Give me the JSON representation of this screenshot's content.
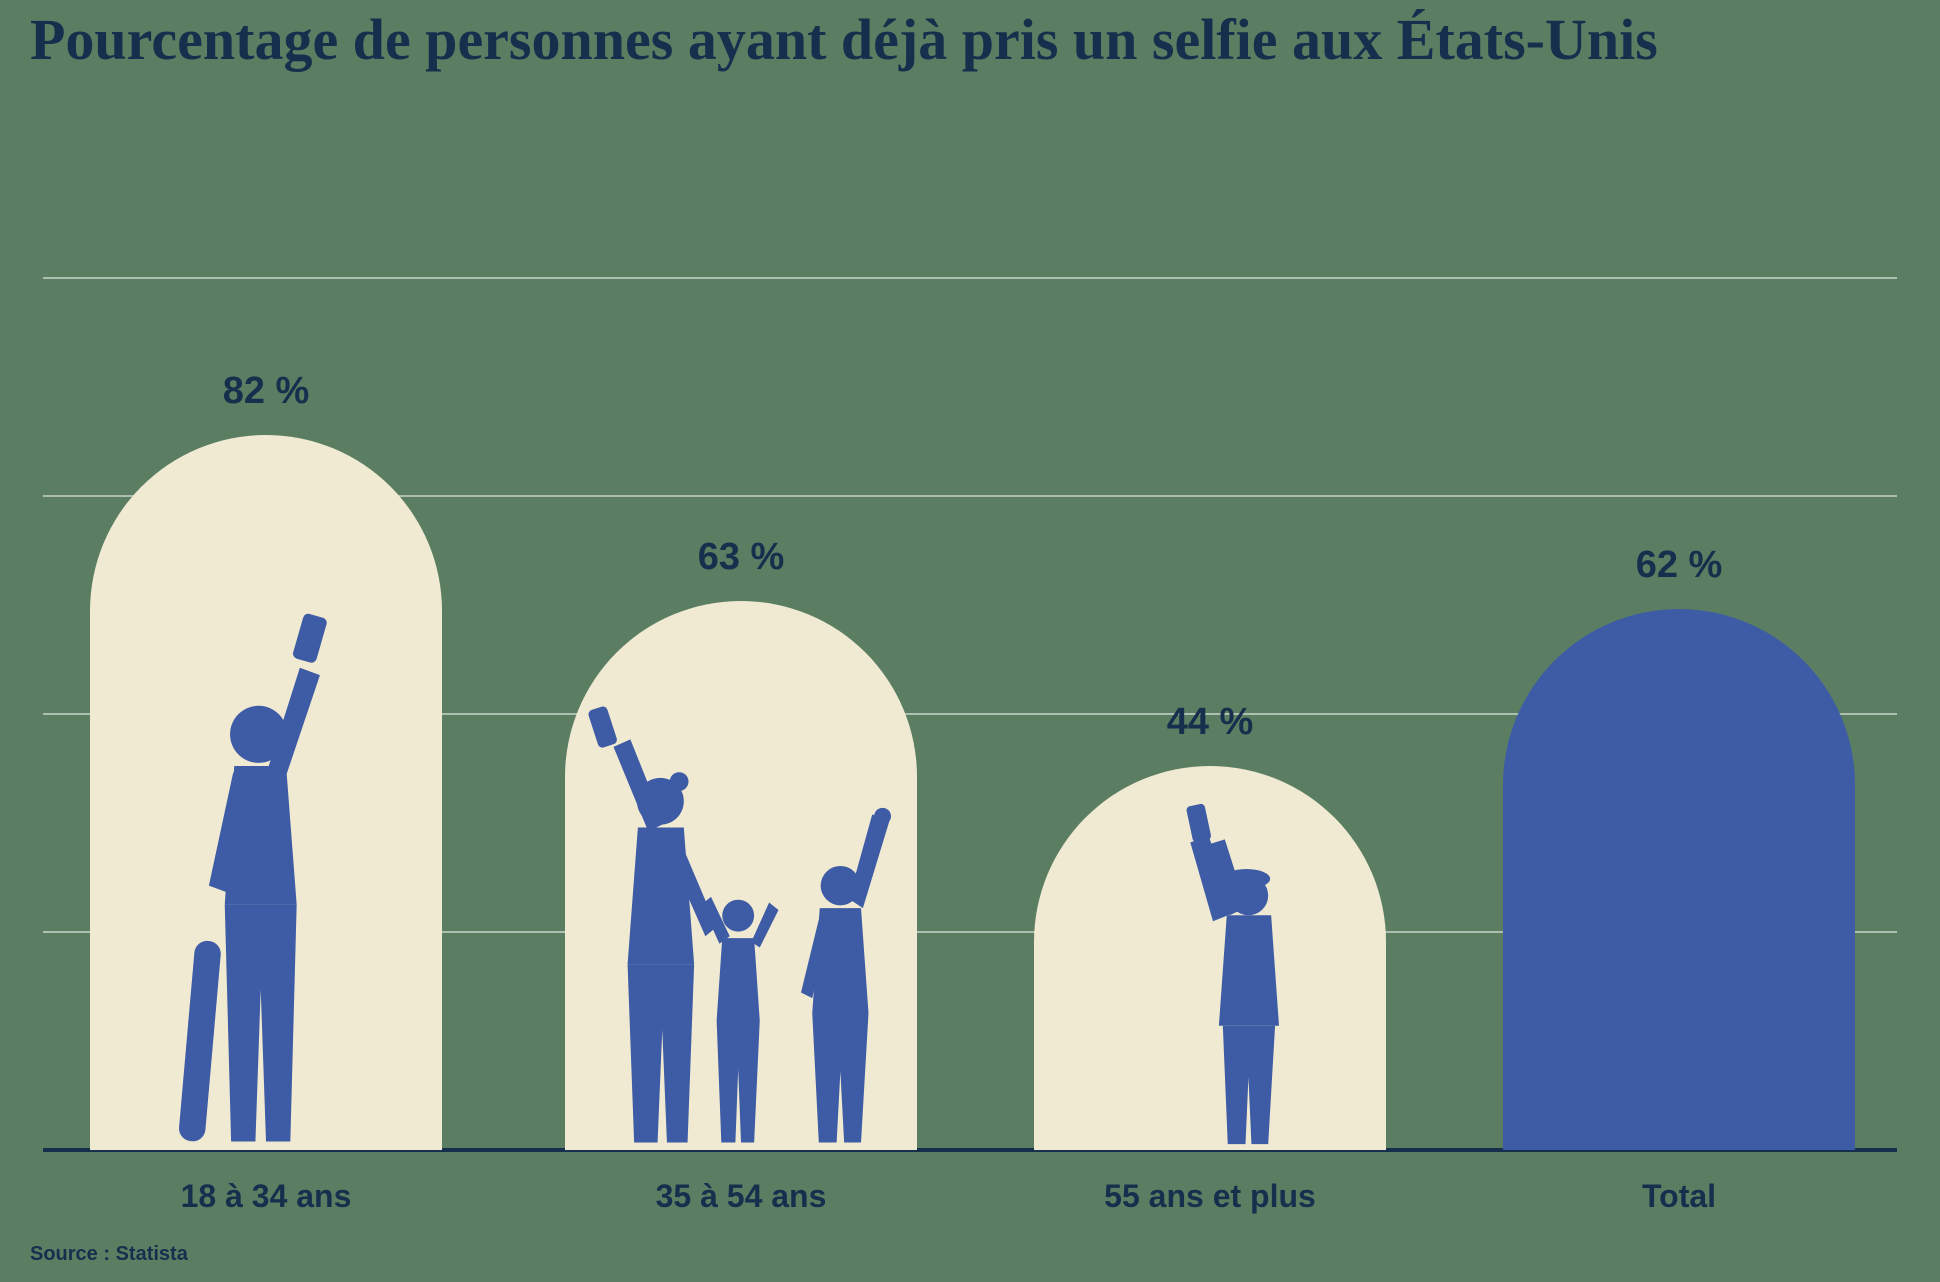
{
  "colors": {
    "background": "#5B7E63",
    "bar_cream": "#F0EAD2",
    "bar_blue": "#3E5CA5",
    "text_navy": "#152F4D",
    "gridline": "rgba(255,255,255,0.5)"
  },
  "chart_data": {
    "type": "bar",
    "title": "Pourcentage de personnes ayant déjà pris un selfie aux États-Unis",
    "categories": [
      "18 à 34 ans",
      "35 à 54 ans",
      "55 ans et plus",
      "Total"
    ],
    "values": [
      82,
      63,
      44,
      62
    ],
    "value_labels": [
      "82 %",
      "63 %",
      "44 %",
      "62 %"
    ],
    "ylim": [
      0,
      100
    ],
    "gridlines": [
      25,
      50,
      75,
      100
    ],
    "legend": "none",
    "bar_shape": "arch",
    "bar_styles": [
      "cream-with-silhouette",
      "cream-with-silhouette",
      "cream-with-silhouette",
      "solid-blue"
    ],
    "silhouettes": [
      "young-adult-selfie-with-skateboard",
      "family-selfie",
      "senior-selfie",
      "none"
    ],
    "source": "Source : Statista"
  }
}
